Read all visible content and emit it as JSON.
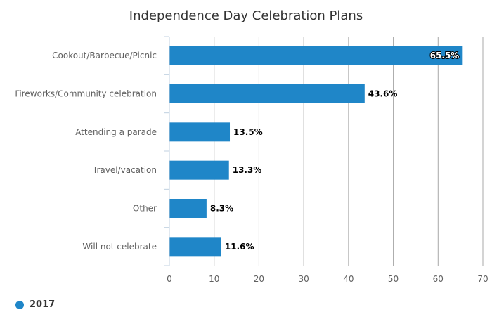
{
  "chart_data": {
    "type": "bar",
    "orientation": "horizontal",
    "title": "Independence Day Celebration Plans",
    "categories": [
      "Cookout/Barbecue/Picnic",
      "Fireworks/Community celebration",
      "Attending a parade",
      "Travel/vacation",
      "Other",
      "Will not celebrate"
    ],
    "series": [
      {
        "name": "2017",
        "values": [
          65.5,
          43.6,
          13.5,
          13.3,
          8.3,
          11.6
        ]
      }
    ],
    "data_labels": [
      "65.5%",
      "43.6%",
      "13.5%",
      "13.3%",
      "8.3%",
      "11.6%"
    ],
    "x_ticks": [
      "0",
      "10",
      "20",
      "30",
      "40",
      "50",
      "60",
      "70"
    ],
    "xlim": [
      0,
      70
    ],
    "grid": true,
    "legend_position": "bottom-left",
    "bar_color": "#1f86c8"
  }
}
